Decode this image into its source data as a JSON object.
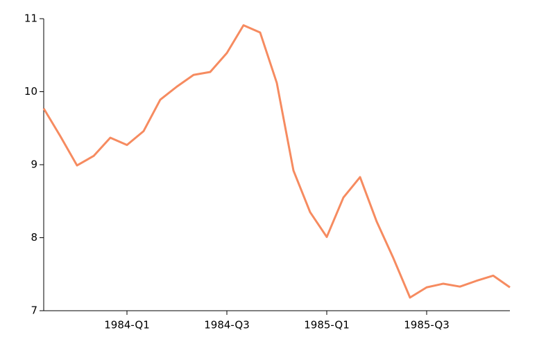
{
  "chart_data": {
    "type": "line",
    "categories": [
      null,
      null,
      null,
      null,
      null,
      "1984-Q1",
      null,
      null,
      null,
      null,
      null,
      "1984-Q3",
      null,
      null,
      null,
      null,
      null,
      "1985-Q1",
      null,
      null,
      null,
      null,
      null,
      "1985-Q3",
      null,
      null,
      null,
      null,
      null
    ],
    "series": [
      {
        "color": "#f68b60",
        "values": [
          9.77,
          9.39,
          8.99,
          9.12,
          9.37,
          9.27,
          9.46,
          9.89,
          10.07,
          10.23,
          10.27,
          10.53,
          10.91,
          10.81,
          10.12,
          8.92,
          8.35,
          8.01,
          8.55,
          8.83,
          8.22,
          7.72,
          7.18,
          7.32,
          7.37,
          7.33,
          7.41,
          7.48,
          7.32
        ]
      }
    ],
    "ylim": [
      7,
      11
    ],
    "yticks": [
      7,
      8,
      9,
      10,
      11
    ]
  }
}
